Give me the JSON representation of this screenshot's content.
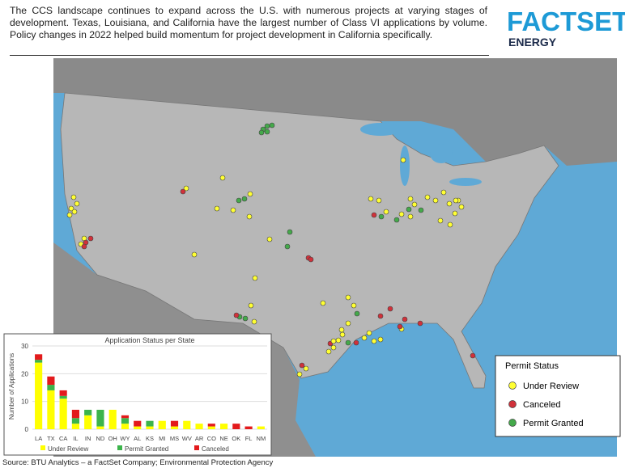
{
  "header": {
    "text": "The CCS landscape continues to expand across the U.S. with numerous projects at varying stages of development. Texas, Louisiana, and California have the largest number of Class VI applications by volume. Policy changes in 2022 helped build momentum for project development in California specifically."
  },
  "logo": {
    "brand": "FACTSET",
    "sub": "ENERGY"
  },
  "map_legend": {
    "title": "Permit Status",
    "items": [
      {
        "label": "Under Review",
        "color": "#ffff33"
      },
      {
        "label": "Canceled",
        "color": "#d0313a"
      },
      {
        "label": "Permit Granted",
        "color": "#44a94a"
      }
    ]
  },
  "chart_data": {
    "type": "bar",
    "stacked": true,
    "title": "Application Status per State",
    "y_label": "Number of Applications",
    "categories": [
      "LA",
      "TX",
      "CA",
      "IL",
      "IN",
      "ND",
      "OH",
      "WY",
      "AL",
      "KS",
      "MI",
      "MS",
      "WV",
      "AR",
      "CO",
      "NE",
      "OK",
      "FL",
      "NM"
    ],
    "series": [
      {
        "name": "Under Review",
        "color": "#ffff00",
        "values": [
          24,
          14,
          11,
          2,
          5,
          1,
          7,
          2,
          1,
          1,
          3,
          1,
          3,
          2,
          1,
          2,
          0,
          0,
          1
        ]
      },
      {
        "name": "Permit Granted",
        "color": "#3cb44b",
        "values": [
          1,
          2,
          1,
          2,
          2,
          6,
          0,
          2,
          0,
          2,
          0,
          0,
          0,
          0,
          0,
          0,
          0,
          0,
          0
        ]
      },
      {
        "name": "Canceled",
        "color": "#e31a1c",
        "values": [
          2,
          3,
          2,
          3,
          0,
          0,
          0,
          1,
          2,
          0,
          0,
          2,
          0,
          0,
          1,
          0,
          2,
          1,
          0
        ]
      }
    ],
    "ylim": [
      0,
      30
    ],
    "yticks": [
      0,
      10,
      20,
      30
    ],
    "grid": true
  },
  "source": "Source: BTU Analytics – a FactSet Company; Environmental Protection Agency"
}
